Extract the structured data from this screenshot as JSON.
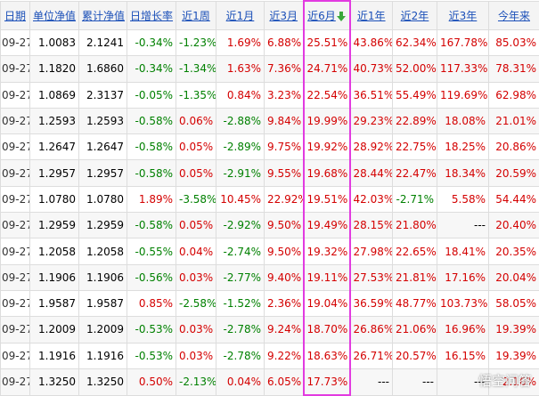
{
  "table": {
    "header": [
      "日期",
      "单位净值",
      "累计净值",
      "日增长率",
      "近1周",
      "近1月",
      "近3月",
      "近6月",
      "近1年",
      "近2年",
      "近3年",
      "今年来"
    ],
    "rows": [
      [
        "09-27",
        "1.0083",
        "2.1241",
        "-0.34%",
        "-1.23%",
        "1.69%",
        "6.88%",
        "25.51%",
        "43.86%",
        "62.34%",
        "167.78%",
        "85.03%"
      ],
      [
        "09-27",
        "1.1820",
        "1.6860",
        "-0.34%",
        "-1.34%",
        "1.63%",
        "7.36%",
        "24.71%",
        "40.73%",
        "52.00%",
        "117.33%",
        "78.31%"
      ],
      [
        "09-27",
        "1.0869",
        "2.3137",
        "-0.05%",
        "-1.35%",
        "0.84%",
        "3.23%",
        "22.54%",
        "36.51%",
        "55.49%",
        "119.69%",
        "62.98%"
      ],
      [
        "09-27",
        "1.2593",
        "1.2593",
        "-0.58%",
        "0.06%",
        "-2.88%",
        "9.84%",
        "19.99%",
        "29.23%",
        "22.89%",
        "18.08%",
        "21.01%"
      ],
      [
        "09-27",
        "1.2647",
        "1.2647",
        "-0.58%",
        "0.05%",
        "-2.89%",
        "9.75%",
        "19.92%",
        "28.92%",
        "22.75%",
        "18.25%",
        "20.86%"
      ],
      [
        "09-27",
        "1.2957",
        "1.2957",
        "-0.58%",
        "0.05%",
        "-2.91%",
        "9.55%",
        "19.68%",
        "28.44%",
        "22.47%",
        "18.34%",
        "20.59%"
      ],
      [
        "09-27",
        "1.0780",
        "1.0780",
        "1.89%",
        "-3.58%",
        "10.45%",
        "22.92%",
        "19.51%",
        "42.03%",
        "-2.71%",
        "5.58%",
        "54.44%"
      ],
      [
        "09-27",
        "1.2959",
        "1.2959",
        "-0.58%",
        "0.05%",
        "-2.92%",
        "9.50%",
        "19.49%",
        "28.15%",
        "21.80%",
        "---",
        "20.40%"
      ],
      [
        "09-27",
        "1.2058",
        "1.2058",
        "-0.55%",
        "0.04%",
        "-2.74%",
        "9.50%",
        "19.32%",
        "27.98%",
        "22.65%",
        "18.41%",
        "20.35%"
      ],
      [
        "09-27",
        "1.1906",
        "1.1906",
        "-0.56%",
        "0.03%",
        "-2.77%",
        "9.40%",
        "19.11%",
        "27.53%",
        "21.81%",
        "17.16%",
        "20.04%"
      ],
      [
        "09-27",
        "1.9587",
        "1.9587",
        "0.85%",
        "-2.58%",
        "-1.52%",
        "2.36%",
        "19.04%",
        "36.59%",
        "48.77%",
        "103.73%",
        "58.05%"
      ],
      [
        "09-27",
        "1.2009",
        "1.2009",
        "-0.53%",
        "0.03%",
        "-2.78%",
        "9.24%",
        "18.70%",
        "26.86%",
        "21.06%",
        "16.96%",
        "19.39%"
      ],
      [
        "09-27",
        "1.1916",
        "1.1916",
        "-0.53%",
        "0.03%",
        "-2.78%",
        "9.22%",
        "18.63%",
        "26.71%",
        "20.57%",
        "16.15%",
        "19.39%"
      ],
      [
        "09-27",
        "1.3250",
        "1.3250",
        "0.50%",
        "-2.13%",
        "0.04%",
        "6.05%",
        "17.73%",
        "---",
        "---",
        "---",
        "2.16%"
      ]
    ]
  },
  "watermark": "悟空问答"
}
